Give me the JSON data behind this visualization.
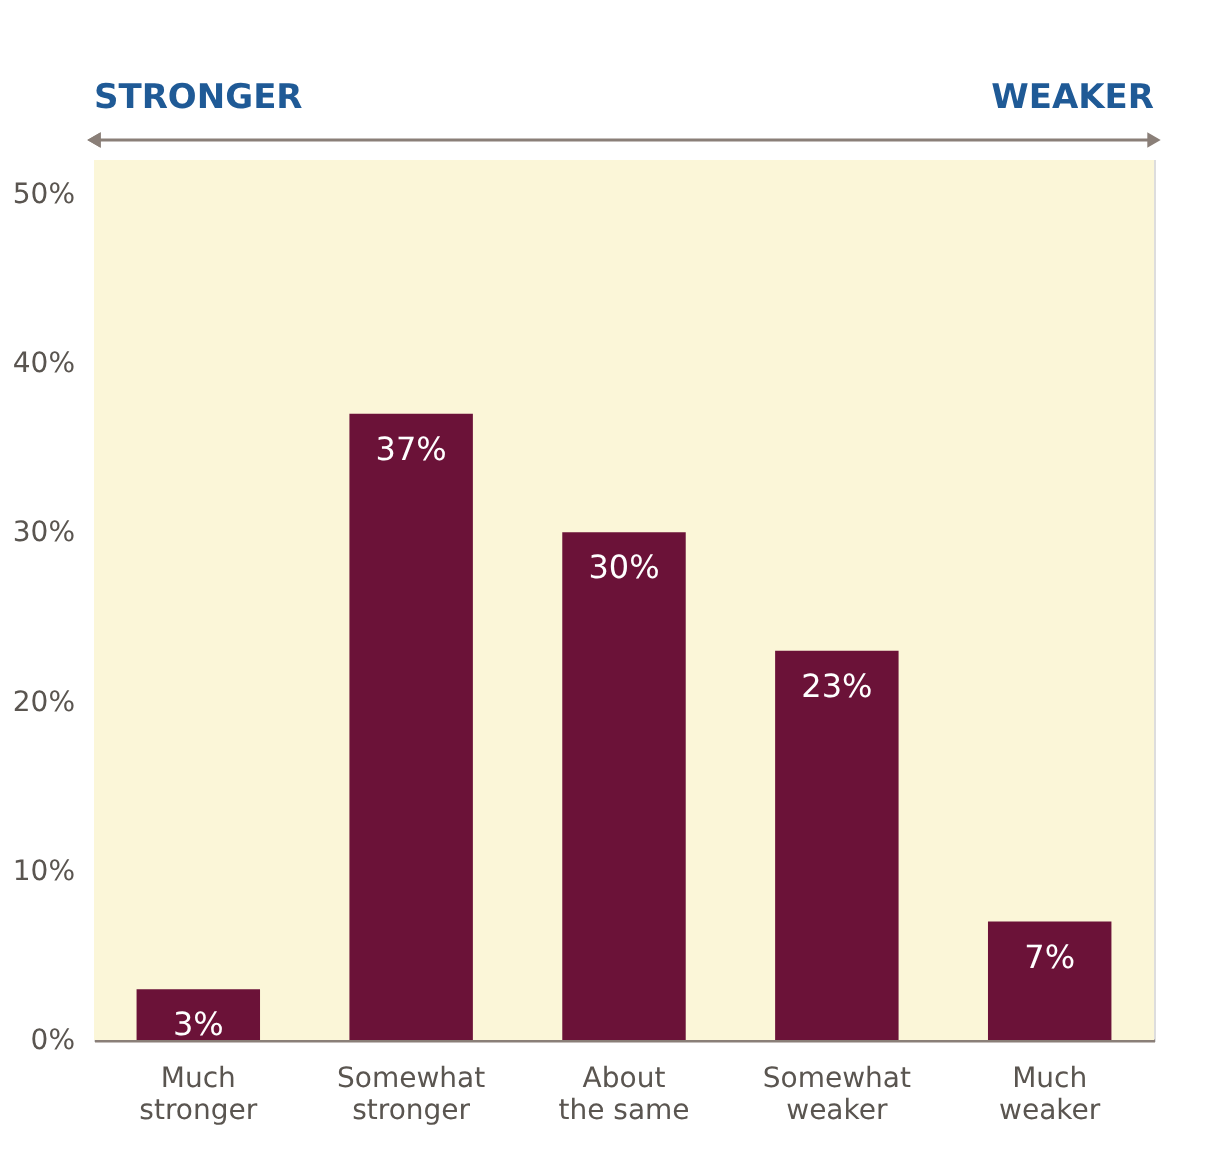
{
  "chart_data": {
    "type": "bar",
    "categories": [
      "Much stronger",
      "Somewhat stronger",
      "About the same",
      "Somewhat weaker",
      "Much weaker"
    ],
    "values": [
      3,
      37,
      30,
      23,
      7
    ],
    "color": "#6b1238",
    "value_labels": [
      "3%",
      "37%",
      "30%",
      "23%",
      "7%"
    ],
    "ylim": [
      0,
      52
    ],
    "yticks": [
      {
        "value": 0,
        "label": "0%"
      },
      {
        "value": 10,
        "label": "10%"
      },
      {
        "value": 20,
        "label": "20%"
      },
      {
        "value": 30,
        "label": "30%"
      },
      {
        "value": 40,
        "label": "40%"
      },
      {
        "value": 50,
        "label": "50%"
      }
    ],
    "annotations": [
      "STRONGER",
      "WEAKER"
    ]
  }
}
